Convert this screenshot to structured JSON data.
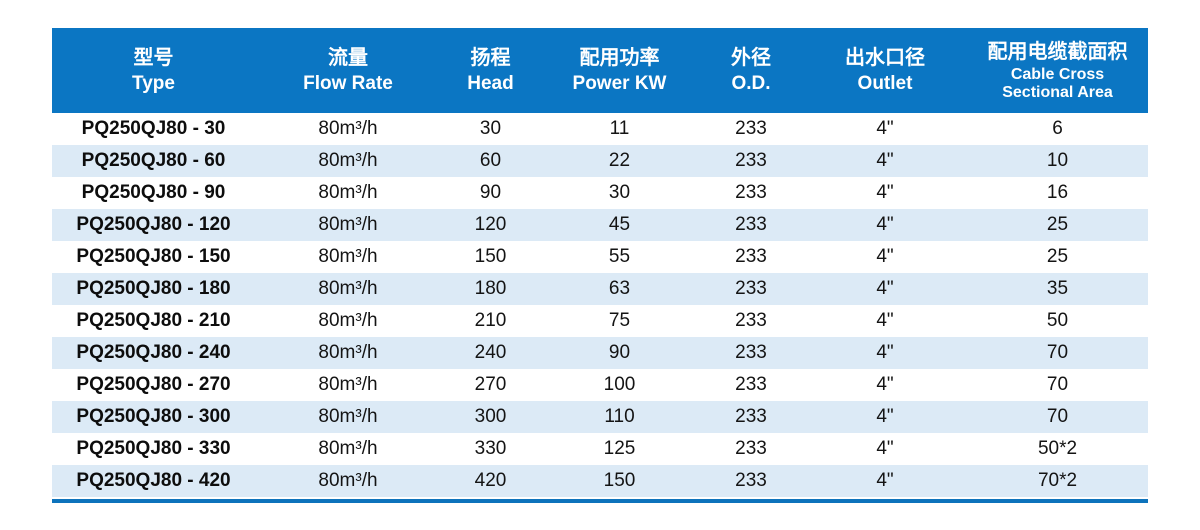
{
  "colors": {
    "header_bg": "#0b76c3",
    "header_text": "#ffffff",
    "stripe": "#dceaf6",
    "row_text": "#141414",
    "bottom_bar": "#0d73bc"
  },
  "table": {
    "columns": [
      {
        "zh": "型号",
        "en": "Type"
      },
      {
        "zh": "流量",
        "en": "Flow Rate"
      },
      {
        "zh": "扬程",
        "en": "Head"
      },
      {
        "zh": "配用功率",
        "en": "Power KW"
      },
      {
        "zh": "外径",
        "en": "O.D."
      },
      {
        "zh": "出水口径",
        "en": "Outlet"
      },
      {
        "zh": "配用电缆截面积",
        "en": "Cable Cross",
        "en2": "Sectional Area"
      }
    ],
    "rows": [
      {
        "type": "PQ250QJ80 - 30",
        "flow_rate": "80m³/h",
        "head": "30",
        "power_kw": "11",
        "od": "233",
        "outlet": "4\"",
        "cable": "6"
      },
      {
        "type": "PQ250QJ80 - 60",
        "flow_rate": "80m³/h",
        "head": "60",
        "power_kw": "22",
        "od": "233",
        "outlet": "4\"",
        "cable": "10"
      },
      {
        "type": "PQ250QJ80 - 90",
        "flow_rate": "80m³/h",
        "head": "90",
        "power_kw": "30",
        "od": "233",
        "outlet": "4\"",
        "cable": "16"
      },
      {
        "type": "PQ250QJ80 - 120",
        "flow_rate": "80m³/h",
        "head": "120",
        "power_kw": "45",
        "od": "233",
        "outlet": "4\"",
        "cable": "25"
      },
      {
        "type": "PQ250QJ80 - 150",
        "flow_rate": "80m³/h",
        "head": "150",
        "power_kw": "55",
        "od": "233",
        "outlet": "4\"",
        "cable": "25"
      },
      {
        "type": "PQ250QJ80 - 180",
        "flow_rate": "80m³/h",
        "head": "180",
        "power_kw": "63",
        "od": "233",
        "outlet": "4\"",
        "cable": "35"
      },
      {
        "type": "PQ250QJ80 - 210",
        "flow_rate": "80m³/h",
        "head": "210",
        "power_kw": "75",
        "od": "233",
        "outlet": "4\"",
        "cable": "50"
      },
      {
        "type": "PQ250QJ80 - 240",
        "flow_rate": "80m³/h",
        "head": "240",
        "power_kw": "90",
        "od": "233",
        "outlet": "4\"",
        "cable": "70"
      },
      {
        "type": "PQ250QJ80 - 270",
        "flow_rate": "80m³/h",
        "head": "270",
        "power_kw": "100",
        "od": "233",
        "outlet": "4\"",
        "cable": "70"
      },
      {
        "type": "PQ250QJ80 - 300",
        "flow_rate": "80m³/h",
        "head": "300",
        "power_kw": "110",
        "od": "233",
        "outlet": "4\"",
        "cable": "70"
      },
      {
        "type": "PQ250QJ80 - 330",
        "flow_rate": "80m³/h",
        "head": "330",
        "power_kw": "125",
        "od": "233",
        "outlet": "4\"",
        "cable": "50*2"
      },
      {
        "type": "PQ250QJ80 - 420",
        "flow_rate": "80m³/h",
        "head": "420",
        "power_kw": "150",
        "od": "233",
        "outlet": "4\"",
        "cable": "70*2"
      }
    ]
  }
}
